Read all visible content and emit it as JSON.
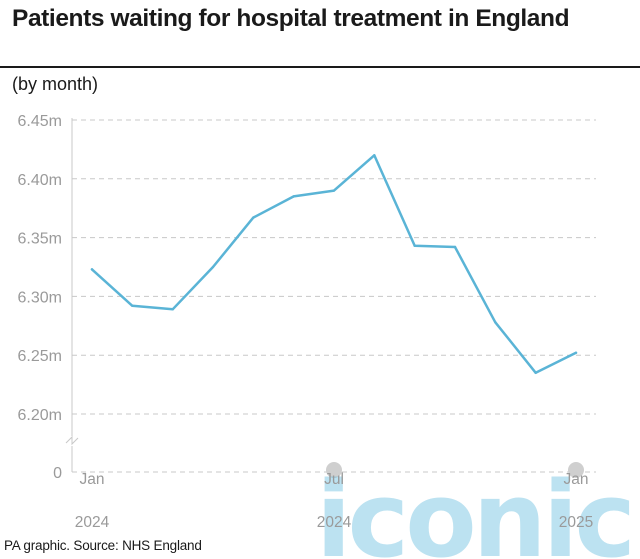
{
  "header": {
    "title": "Patients waiting for hospital treatment in England",
    "subtitle": "(by month)"
  },
  "footer": {
    "source": "PA graphic. Source: NHS England"
  },
  "watermark": {
    "text": "iconic"
  },
  "colors": {
    "line": "#5ab4d6",
    "grid": "#c8c8c8",
    "axis_text": "#9a9a9a",
    "marker": "#cfcfcf"
  },
  "chart_data": {
    "type": "line",
    "title": "Patients waiting for hospital treatment in England",
    "subtitle": "(by month)",
    "x": [
      "2024-01",
      "2024-02",
      "2024-03",
      "2024-04",
      "2024-05",
      "2024-06",
      "2024-07",
      "2024-08",
      "2024-09",
      "2024-10",
      "2024-11",
      "2024-12",
      "2025-01"
    ],
    "series": [
      {
        "values": [
          6.323,
          6.292,
          6.289,
          6.325,
          6.367,
          6.385,
          6.39,
          6.42,
          6.343,
          6.342,
          6.278,
          6.235,
          6.252
        ]
      }
    ],
    "ylim": [
      6.2,
      6.45
    ],
    "yticks": [
      6.45,
      6.4,
      6.35,
      6.3,
      6.25,
      6.2
    ],
    "ytick_labels": [
      "6.45m",
      "6.40m",
      "6.35m",
      "6.30m",
      "6.25m",
      "6.20m"
    ],
    "y_zero_label": "0",
    "axis_break": true,
    "xticks": [
      {
        "index": 0,
        "month": "Jan",
        "year": "2024"
      },
      {
        "index": 6,
        "month": "Jul",
        "year": "2024"
      },
      {
        "index": 12,
        "month": "Jan",
        "year": "2025"
      }
    ],
    "grid": true,
    "legend": "none"
  }
}
